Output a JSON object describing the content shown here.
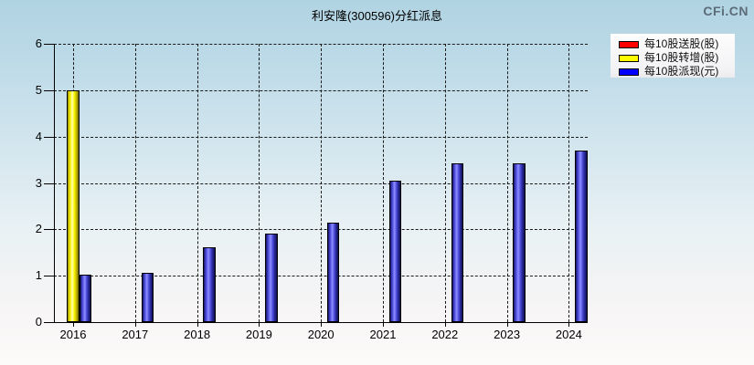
{
  "header": {
    "title": "利安隆(300596)分红派息",
    "watermark": "CFi.CN"
  },
  "legend": {
    "items": [
      {
        "label": "每10股送股(股)",
        "color": "#ff0000"
      },
      {
        "label": "每10股转增(股)",
        "color": "#ffff00"
      },
      {
        "label": "每10股派现(元)",
        "color": "#0000ff"
      }
    ]
  },
  "chart_data": {
    "type": "bar",
    "title": "利安隆(300596)分红派息",
    "categories": [
      "2016",
      "2017",
      "2018",
      "2019",
      "2020",
      "2021",
      "2022",
      "2023",
      "2024"
    ],
    "series": [
      {
        "name": "每10股送股(股)",
        "color": "#ff0000",
        "values": [
          0,
          0,
          0,
          0,
          0,
          0,
          0,
          0,
          0
        ]
      },
      {
        "name": "每10股转增(股)",
        "color": "#ffff00",
        "values": [
          5.0,
          0,
          0,
          0,
          0,
          0,
          0,
          0,
          0
        ]
      },
      {
        "name": "每10股派现(元)",
        "color": "#0000ff",
        "values": [
          1.03,
          1.06,
          1.61,
          1.9,
          2.15,
          3.04,
          3.42,
          3.42,
          3.7
        ]
      }
    ],
    "xlabel": "",
    "ylabel": "",
    "ylim": [
      0,
      6
    ],
    "yticks": [
      0,
      1,
      2,
      3,
      4,
      5,
      6
    ],
    "grid": true,
    "legend_position": "top-right"
  }
}
